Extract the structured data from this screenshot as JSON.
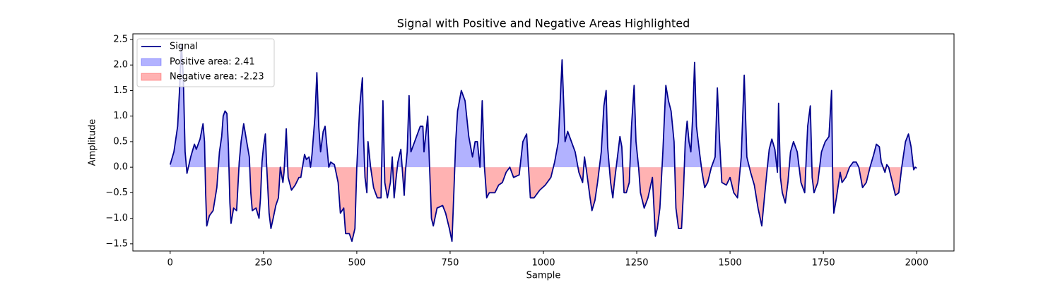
{
  "chart_data": {
    "type": "line",
    "title": "Signal with Positive and Negative Areas Highlighted",
    "x_label": "Sample",
    "y_label": "Amplitude",
    "x": [
      0,
      10,
      20,
      25,
      30,
      35,
      40,
      45,
      55,
      65,
      70,
      75,
      80,
      88,
      92,
      95,
      98,
      105,
      115,
      125,
      132,
      138,
      142,
      147,
      152,
      156,
      160,
      163,
      170,
      178,
      185,
      190,
      197,
      205,
      212,
      216,
      220,
      230,
      238,
      242,
      246,
      250,
      255,
      258,
      265,
      270,
      276,
      283,
      290,
      295,
      302,
      305,
      311,
      316,
      325,
      335,
      345,
      350,
      360,
      365,
      372,
      376,
      380,
      388,
      393,
      398,
      403,
      410,
      415,
      420,
      425,
      430,
      440,
      450,
      456,
      465,
      470,
      480,
      487,
      495,
      500,
      508,
      515,
      518,
      522,
      527,
      530,
      537,
      545,
      555,
      565,
      570,
      575,
      582,
      590,
      595,
      600,
      604,
      610,
      618,
      627,
      630,
      635,
      640,
      645,
      650,
      660,
      670,
      677,
      680,
      690,
      695,
      700,
      705,
      715,
      730,
      738,
      748,
      755,
      760,
      765,
      770,
      780,
      790,
      800,
      810,
      817,
      823,
      830,
      836,
      842,
      848,
      855,
      870,
      880,
      890,
      900,
      910,
      920,
      935,
      945,
      955,
      960,
      965,
      975,
      990,
      1005,
      1020,
      1030,
      1040,
      1050,
      1058,
      1065,
      1075,
      1085,
      1095,
      1105,
      1110,
      1115,
      1125,
      1130,
      1138,
      1145,
      1155,
      1162,
      1168,
      1172,
      1180,
      1186,
      1190,
      1200,
      1205,
      1210,
      1216,
      1222,
      1230,
      1236,
      1243,
      1248,
      1255,
      1260,
      1270,
      1280,
      1292,
      1300,
      1305,
      1312,
      1320,
      1328,
      1335,
      1342,
      1350,
      1355,
      1362,
      1370,
      1375,
      1380,
      1385,
      1390,
      1395,
      1400,
      1405,
      1410,
      1418,
      1425,
      1432,
      1440,
      1450,
      1460,
      1466,
      1472,
      1478,
      1490,
      1500,
      1510,
      1520,
      1530,
      1538,
      1545,
      1555,
      1565,
      1575,
      1585,
      1592,
      1600,
      1605,
      1612,
      1620,
      1627,
      1630,
      1635,
      1640,
      1648,
      1655,
      1662,
      1670,
      1680,
      1690,
      1700,
      1708,
      1715,
      1720,
      1725,
      1735,
      1745,
      1755,
      1765,
      1772,
      1775,
      1778,
      1785,
      1795,
      1800,
      1810,
      1820,
      1830,
      1838,
      1845,
      1855,
      1865,
      1875,
      1885,
      1892,
      1900,
      1905,
      1910,
      1915,
      1920,
      1925,
      1935,
      1943,
      1952,
      1960,
      1970,
      1978,
      1985,
      1992,
      1996,
      2000
    ],
    "series": [
      {
        "name": "Signal",
        "color": "#00008b",
        "values": [
          0.05,
          0.3,
          0.8,
          1.5,
          2.4,
          1.8,
          0.3,
          -0.12,
          0.2,
          0.45,
          0.35,
          0.45,
          0.55,
          0.85,
          0.5,
          -0.5,
          -1.15,
          -0.95,
          -0.85,
          -0.4,
          0.3,
          0.6,
          1.0,
          1.1,
          1.05,
          0.4,
          -0.7,
          -1.1,
          -0.8,
          -0.85,
          0.1,
          0.5,
          0.85,
          0.5,
          0.2,
          -0.5,
          -0.85,
          -0.8,
          -1.0,
          -0.6,
          0.1,
          0.4,
          0.65,
          0.1,
          -0.9,
          -1.2,
          -1.0,
          -0.75,
          -0.6,
          0.0,
          -0.3,
          -0.1,
          0.75,
          -0.2,
          -0.45,
          -0.35,
          -0.2,
          -0.2,
          0.25,
          0.15,
          0.2,
          0.0,
          0.25,
          1.0,
          1.85,
          0.8,
          0.3,
          0.7,
          0.8,
          0.4,
          0.0,
          0.1,
          0.05,
          -0.3,
          -0.9,
          -0.8,
          -1.3,
          -1.3,
          -1.45,
          -1.2,
          0.0,
          1.2,
          1.75,
          0.6,
          -0.2,
          -0.5,
          0.5,
          0.0,
          -0.4,
          -0.6,
          -0.6,
          1.3,
          -0.3,
          -0.6,
          -0.3,
          0.2,
          -0.6,
          -0.3,
          0.1,
          0.35,
          -0.55,
          -0.1,
          0.3,
          1.4,
          0.3,
          0.4,
          0.6,
          0.8,
          0.8,
          0.3,
          1.0,
          0.0,
          -1.0,
          -1.15,
          -0.8,
          -0.75,
          -0.9,
          -1.2,
          -1.45,
          -0.5,
          0.5,
          1.1,
          1.5,
          1.3,
          0.6,
          0.2,
          0.5,
          0.5,
          0.0,
          1.3,
          0.0,
          -0.6,
          -0.5,
          -0.5,
          -0.35,
          -0.3,
          -0.1,
          0.0,
          -0.2,
          -0.15,
          0.5,
          0.65,
          0.0,
          -0.6,
          -0.6,
          -0.45,
          -0.35,
          -0.2,
          0.1,
          0.5,
          2.1,
          0.5,
          0.7,
          0.5,
          0.3,
          -0.1,
          -0.3,
          0.2,
          -0.05,
          -0.6,
          -0.85,
          -0.65,
          -0.3,
          0.3,
          1.2,
          1.5,
          0.4,
          -0.3,
          -0.6,
          -0.3,
          0.3,
          0.6,
          0.4,
          -0.5,
          -0.5,
          -0.3,
          0.8,
          1.6,
          0.5,
          0.0,
          -0.5,
          -0.8,
          -0.6,
          -0.2,
          -1.35,
          -1.2,
          -0.8,
          0.3,
          1.6,
          1.3,
          1.1,
          0.5,
          -0.8,
          -1.2,
          -1.2,
          -0.5,
          0.5,
          0.9,
          0.5,
          0.3,
          1.0,
          2.05,
          0.8,
          0.3,
          -0.1,
          -0.4,
          -0.3,
          0.0,
          0.2,
          1.55,
          0.5,
          -0.3,
          -0.35,
          -0.2,
          -0.5,
          -0.6,
          0.2,
          1.8,
          0.2,
          -0.1,
          -0.35,
          -0.8,
          -1.15,
          -0.6,
          0.0,
          0.35,
          0.55,
          0.35,
          -0.1,
          1.25,
          -0.2,
          -0.5,
          -0.7,
          -0.3,
          0.3,
          0.5,
          0.3,
          -0.3,
          -0.5,
          0.8,
          1.2,
          -0.2,
          -0.5,
          -0.3,
          0.3,
          0.5,
          0.6,
          1.5,
          -0.2,
          -0.9,
          -0.6,
          -0.1,
          -0.3,
          -0.2,
          0.0,
          0.1,
          0.1,
          0.0,
          -0.4,
          -0.3,
          0.0,
          0.25,
          0.45,
          0.4,
          0.1,
          0.0,
          -0.1,
          0.05,
          0.0,
          -0.3,
          -0.55,
          -0.5,
          0.0,
          0.5,
          0.65,
          0.4,
          -0.05,
          0.0,
          -0.02
        ]
      }
    ],
    "fills": [
      {
        "name": "Positive area: 2.41",
        "color": "#0000ff",
        "side": "positive"
      },
      {
        "name": "Negative area: -2.23",
        "color": "#ff0000",
        "side": "negative"
      }
    ],
    "xlim": [
      -100,
      2100
    ],
    "ylim": [
      -1.64,
      2.61
    ],
    "xticks": [
      0,
      250,
      500,
      750,
      1000,
      1250,
      1500,
      1750,
      2000
    ],
    "yticks": [
      {
        "value": -1.5,
        "label": "−1.5"
      },
      {
        "value": -1.0,
        "label": "−1.0"
      },
      {
        "value": -0.5,
        "label": "−0.5"
      },
      {
        "value": 0.0,
        "label": "0.0"
      },
      0.5,
      {
        "value": 1.0,
        "label": "1.0"
      },
      1.5,
      {
        "value": 2.0,
        "label": "2.0"
      },
      2.5
    ],
    "legend": "upper left"
  }
}
